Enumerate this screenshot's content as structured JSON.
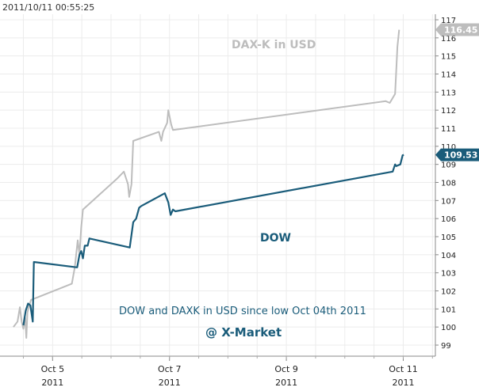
{
  "timestamp": "2011/10/11 00:55:25",
  "annotation": "DOW and DAXK in USD since low  Oct 04th 2011",
  "brand": "@ X-Market",
  "chart_data": {
    "type": "line",
    "title": "",
    "xlabel": "",
    "ylabel": "",
    "ylim": [
      98.5,
      117.3
    ],
    "y_ticks": [
      99,
      100,
      101,
      102,
      103,
      104,
      105,
      106,
      107,
      108,
      109,
      110,
      111,
      112,
      113,
      114,
      115,
      116,
      117
    ],
    "x_ticks": [
      {
        "x": 5,
        "label": "Oct 5",
        "sub": "2011"
      },
      {
        "x": 7,
        "label": "Oct 7",
        "sub": "2011"
      },
      {
        "x": 9,
        "label": "Oct 9",
        "sub": "2011"
      },
      {
        "x": 11,
        "label": "Oct 11",
        "sub": "2011"
      }
    ],
    "xlim": [
      4.1,
      11.55
    ],
    "grid": true,
    "series": [
      {
        "name": "DAX-K in USD",
        "color": "#bdbdbd",
        "last_value": "116.45",
        "points": [
          [
            4.33,
            100.0
          ],
          [
            4.4,
            100.3
          ],
          [
            4.44,
            101.1
          ],
          [
            4.47,
            100.3
          ],
          [
            4.5,
            99.9
          ],
          [
            4.53,
            100.5
          ],
          [
            4.55,
            99.4
          ],
          [
            4.57,
            100.8
          ],
          [
            4.6,
            101.2
          ],
          [
            4.63,
            101.5
          ],
          [
            5.1,
            102.1
          ],
          [
            5.33,
            102.4
          ],
          [
            5.38,
            103.3
          ],
          [
            5.43,
            104.8
          ],
          [
            5.46,
            104.0
          ],
          [
            5.49,
            105.5
          ],
          [
            5.52,
            106.5
          ],
          [
            6.1,
            108.2
          ],
          [
            6.22,
            108.6
          ],
          [
            6.29,
            107.9
          ],
          [
            6.31,
            107.2
          ],
          [
            6.35,
            107.9
          ],
          [
            6.38,
            110.3
          ],
          [
            6.82,
            110.8
          ],
          [
            6.86,
            110.3
          ],
          [
            6.89,
            110.8
          ],
          [
            6.96,
            111.3
          ],
          [
            6.98,
            112.0
          ],
          [
            7.03,
            111.2
          ],
          [
            7.06,
            110.9
          ],
          [
            10.7,
            112.5
          ],
          [
            10.77,
            112.4
          ],
          [
            10.86,
            112.9
          ],
          [
            10.9,
            115.5
          ],
          [
            10.93,
            116.45
          ]
        ]
      },
      {
        "name": "DOW",
        "color": "#1a5c7a",
        "last_value": "109.53",
        "points": [
          [
            4.5,
            100.1
          ],
          [
            4.54,
            100.9
          ],
          [
            4.58,
            101.3
          ],
          [
            4.62,
            101.2
          ],
          [
            4.66,
            100.3
          ],
          [
            4.68,
            103.6
          ],
          [
            5.42,
            103.3
          ],
          [
            5.46,
            104.0
          ],
          [
            5.49,
            104.2
          ],
          [
            5.52,
            103.8
          ],
          [
            5.55,
            104.5
          ],
          [
            5.6,
            104.5
          ],
          [
            5.63,
            104.9
          ],
          [
            6.32,
            104.4
          ],
          [
            6.38,
            105.8
          ],
          [
            6.43,
            106.0
          ],
          [
            6.48,
            106.6
          ],
          [
            6.52,
            106.7
          ],
          [
            6.92,
            107.4
          ],
          [
            6.98,
            106.9
          ],
          [
            7.02,
            106.2
          ],
          [
            7.06,
            106.5
          ],
          [
            7.1,
            106.4
          ],
          [
            10.82,
            108.6
          ],
          [
            10.86,
            109.0
          ],
          [
            10.88,
            108.9
          ],
          [
            10.95,
            109.0
          ],
          [
            10.99,
            109.5
          ],
          [
            11.01,
            109.53
          ]
        ]
      }
    ]
  }
}
